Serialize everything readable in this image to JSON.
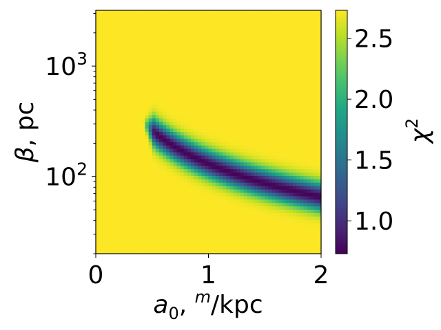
{
  "chart_data": {
    "type": "heatmap",
    "title": "",
    "xlabel": {
      "base": "a",
      "sub": "0",
      "mid": ", ",
      "sup": "m",
      "tail": "/kpc"
    },
    "ylabel": {
      "greek": "β",
      "tail": ", pc"
    },
    "colorbar_label": {
      "base": "χ",
      "sup": "2"
    },
    "xlim": [
      0,
      2
    ],
    "ylim": [
      20,
      3200
    ],
    "yscale": "log",
    "x_ticks": [
      {
        "value": 0,
        "label": "0"
      },
      {
        "value": 1,
        "label": "1"
      },
      {
        "value": 2,
        "label": "2"
      }
    ],
    "y_ticks": [
      {
        "value": 100,
        "base": "10",
        "exp": "2"
      },
      {
        "value": 1000,
        "base": "10",
        "exp": "3"
      }
    ],
    "colorbar": {
      "colormap": "viridis",
      "vmin": 0.73,
      "vmax": 2.73,
      "ticks": [
        {
          "value": 1.0,
          "label": "1.0"
        },
        {
          "value": 1.5,
          "label": "1.5"
        },
        {
          "value": 2.0,
          "label": "2.0"
        },
        {
          "value": 2.5,
          "label": "2.5"
        }
      ]
    },
    "valley": {
      "description_free": true,
      "x_start": 0.42,
      "x_end": 2.0,
      "beta_times_a0": 130,
      "min_chi2": 0.75,
      "plateau_chi2": 2.73
    },
    "colors": {
      "background": "#fde725",
      "valley_core": "#440154"
    },
    "grid": false
  }
}
